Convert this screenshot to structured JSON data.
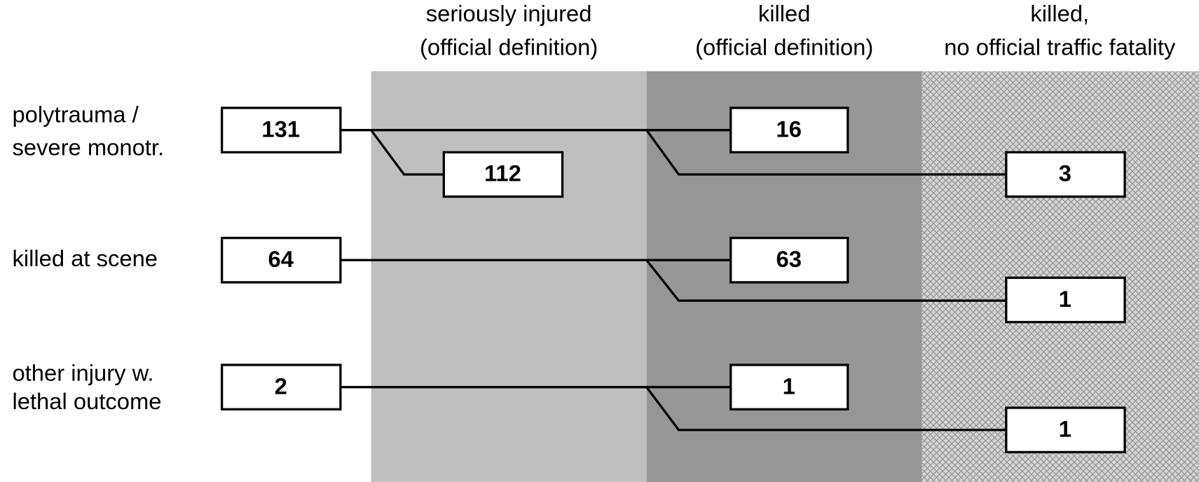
{
  "columns": [
    {
      "lines": [
        "seriously injured",
        "(official definition)"
      ]
    },
    {
      "lines": [
        "killed",
        "(official definition)"
      ]
    },
    {
      "lines": [
        "killed,",
        "no official traffic fatality"
      ]
    }
  ],
  "rows": [
    {
      "label": [
        "polytrauma /",
        "severe monotr."
      ],
      "source": "131",
      "seriously_injured": "112",
      "killed": "16",
      "killed_unofficial": "3"
    },
    {
      "label": [
        "killed at scene"
      ],
      "source": "64",
      "killed": "63",
      "killed_unofficial": "1"
    },
    {
      "label": [
        "other injury w.",
        "lethal outcome"
      ],
      "source": "2",
      "killed": "1",
      "killed_unofficial": "1"
    }
  ]
}
